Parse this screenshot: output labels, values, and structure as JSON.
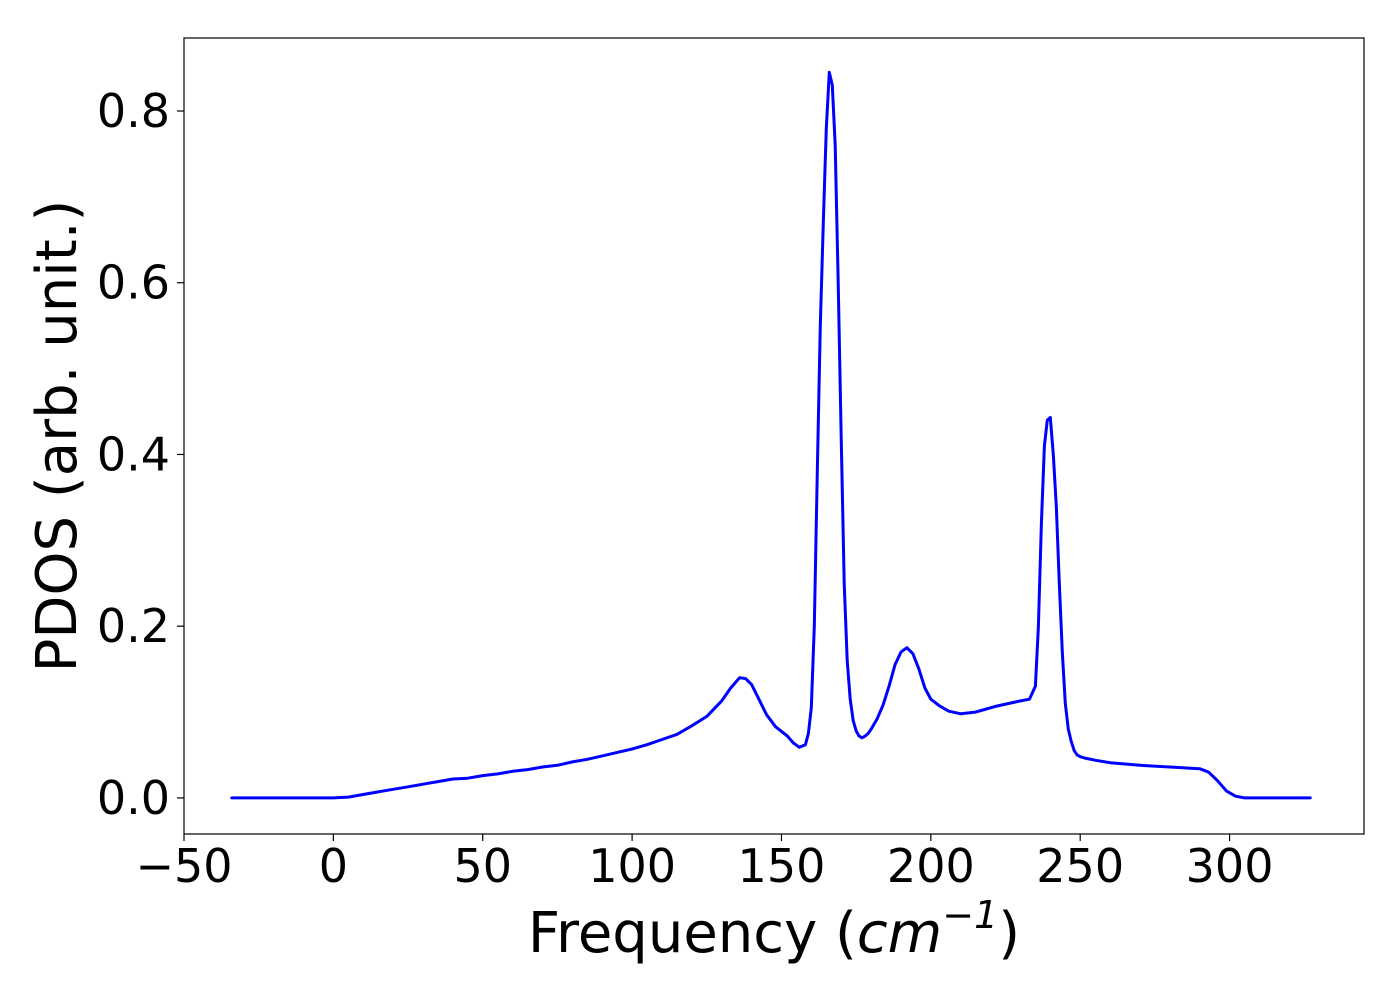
{
  "chart_data": {
    "type": "line",
    "title": "",
    "xlabel": {
      "prefix": "Frequency (",
      "math_base": "cm",
      "math_sup": "−1",
      "suffix": ")"
    },
    "ylabel": "PDOS (arb. unit.)",
    "xlim": [
      -50,
      345
    ],
    "ylim": [
      -0.042,
      0.885
    ],
    "xticks": [
      -50,
      0,
      50,
      100,
      150,
      200,
      250,
      300
    ],
    "xtick_labels": [
      "−50",
      "0",
      "50",
      "100",
      "150",
      "200",
      "250",
      "300"
    ],
    "yticks": [
      0.0,
      0.2,
      0.4,
      0.6,
      0.8
    ],
    "ytick_labels": [
      "0.0",
      "0.2",
      "0.4",
      "0.6",
      "0.8"
    ],
    "grid": false,
    "legend": "none",
    "series": [
      {
        "color": "#0000ff",
        "x": [
          -34,
          -20,
          -10,
          0,
          5,
          10,
          15,
          20,
          25,
          30,
          35,
          40,
          45,
          50,
          55,
          60,
          65,
          70,
          75,
          80,
          85,
          90,
          95,
          100,
          105,
          110,
          115,
          120,
          125,
          130,
          133,
          136,
          138,
          140,
          142,
          145,
          148,
          152,
          154,
          156,
          158,
          159,
          160,
          161,
          162,
          163,
          164,
          165,
          166,
          167,
          168,
          169,
          170,
          171,
          172,
          173,
          174,
          175,
          176,
          177,
          178,
          179,
          180,
          182,
          184,
          186,
          188,
          190,
          192,
          194,
          196,
          198,
          200,
          203,
          206,
          210,
          215,
          218,
          222,
          226,
          230,
          233,
          235,
          236,
          237,
          238,
          239,
          240,
          241,
          242,
          243,
          244,
          245,
          246,
          247,
          248,
          249,
          250,
          252,
          255,
          260,
          270,
          280,
          290,
          293,
          296,
          299,
          302,
          305,
          310,
          320,
          327
        ],
        "y": [
          0.0,
          0.0,
          0.0,
          0.0,
          0.001,
          0.004,
          0.007,
          0.01,
          0.013,
          0.016,
          0.019,
          0.022,
          0.023,
          0.026,
          0.028,
          0.031,
          0.033,
          0.036,
          0.038,
          0.042,
          0.045,
          0.049,
          0.053,
          0.057,
          0.062,
          0.068,
          0.074,
          0.084,
          0.095,
          0.113,
          0.128,
          0.14,
          0.139,
          0.132,
          0.118,
          0.097,
          0.083,
          0.072,
          0.064,
          0.059,
          0.062,
          0.075,
          0.105,
          0.2,
          0.38,
          0.55,
          0.67,
          0.78,
          0.845,
          0.83,
          0.76,
          0.6,
          0.42,
          0.25,
          0.16,
          0.115,
          0.09,
          0.078,
          0.072,
          0.07,
          0.072,
          0.075,
          0.08,
          0.092,
          0.108,
          0.13,
          0.155,
          0.17,
          0.175,
          0.168,
          0.15,
          0.128,
          0.115,
          0.107,
          0.101,
          0.098,
          0.1,
          0.103,
          0.107,
          0.11,
          0.113,
          0.115,
          0.13,
          0.2,
          0.32,
          0.41,
          0.44,
          0.443,
          0.4,
          0.34,
          0.25,
          0.17,
          0.11,
          0.08,
          0.066,
          0.055,
          0.05,
          0.048,
          0.046,
          0.044,
          0.041,
          0.038,
          0.036,
          0.034,
          0.03,
          0.02,
          0.008,
          0.002,
          0.0,
          0.0,
          0.0,
          0.0
        ]
      }
    ]
  }
}
